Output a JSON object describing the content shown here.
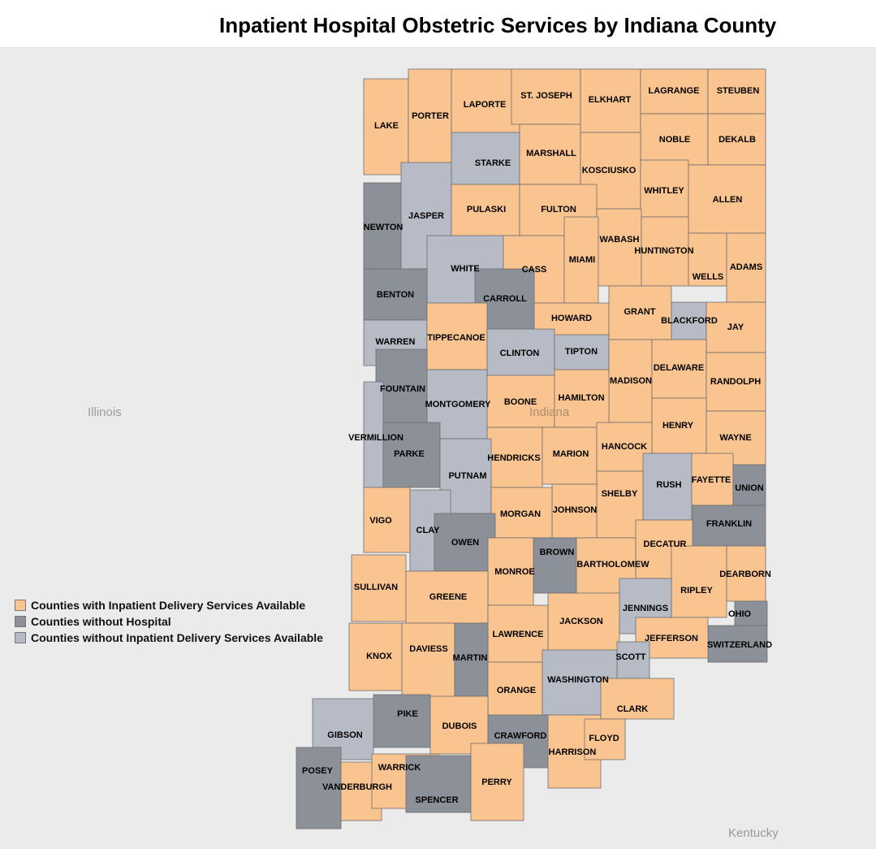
{
  "title": "Inpatient Hospital Obstetric Services by Indiana County",
  "regions": {
    "illinois": "Illinois",
    "indiana": "Indiana",
    "kentucky": "Kentucky"
  },
  "colors": {
    "available": "#f9c48f",
    "no_hospital": "#8c9099",
    "not_available": "#b6bbc5",
    "background": "#ebebeb"
  },
  "legend": [
    {
      "key": "available",
      "label": "Counties with Inpatient Delivery Services Available"
    },
    {
      "key": "no_hospital",
      "label": "Counties without Hospital"
    },
    {
      "key": "not_available",
      "label": "Counties without Inpatient Delivery Services Available"
    }
  ],
  "not_available": [
    "STARKE",
    "JASPER",
    "WHITE",
    "WARREN",
    "CLINTON",
    "TIPTON",
    "BLACKFORD",
    "MONTGOMERY",
    "VERMILLION",
    "PUTNAM",
    "RUSH",
    "CLAY",
    "JENNINGS",
    "SCOTT",
    "WASHINGTON",
    "GIBSON"
  ],
  "no_hospital": [
    "NEWTON",
    "BENTON",
    "CARROLL",
    "FOUNTAIN",
    "PARKE",
    "OWEN",
    "BROWN",
    "UNION",
    "FRANKLIN",
    "OHIO",
    "SWITZERLAND",
    "MARTIN",
    "PIKE",
    "CRAWFORD",
    "POSEY",
    "SPENCER"
  ],
  "counties": [
    "LAKE",
    "PORTER",
    "LAPORTE",
    "ST. JOSEPH",
    "ELKHART",
    "LAGRANGE",
    "STEUBEN",
    "NOBLE",
    "DEKALB",
    "STARKE",
    "MARSHALL",
    "KOSCIUSKO",
    "WHITLEY",
    "ALLEN",
    "NEWTON",
    "JASPER",
    "PULASKI",
    "FULTON",
    "WABASH",
    "HUNTINGTON",
    "WELLS",
    "ADAMS",
    "WHITE",
    "CASS",
    "MIAMI",
    "BENTON",
    "CARROLL",
    "HOWARD",
    "GRANT",
    "BLACKFORD",
    "JAY",
    "WARREN",
    "TIPPECANOE",
    "CLINTON",
    "TIPTON",
    "MADISON",
    "DELAWARE",
    "RANDOLPH",
    "FOUNTAIN",
    "MONTGOMERY",
    "BOONE",
    "HAMILTON",
    "HENRY",
    "WAYNE",
    "VERMILLION",
    "PARKE",
    "HENDRICKS",
    "MARION",
    "HANCOCK",
    "PUTNAM",
    "RUSH",
    "FAYETTE",
    "UNION",
    "SHELBY",
    "JOHNSON",
    "MORGAN",
    "VIGO",
    "CLAY",
    "OWEN",
    "FRANKLIN",
    "DECATUR",
    "BROWN",
    "BARTHOLOMEW",
    "MONROE",
    "SULLIVAN",
    "GREENE",
    "RIPLEY",
    "DEARBORN",
    "JENNINGS",
    "OHIO",
    "SWITZERLAND",
    "JACKSON",
    "LAWRENCE",
    "JEFFERSON",
    "SCOTT",
    "KNOX",
    "DAVIESS",
    "MARTIN",
    "ORANGE",
    "WASHINGTON",
    "CLARK",
    "PIKE",
    "DUBOIS",
    "GIBSON",
    "CRAWFORD",
    "HARRISON",
    "FLOYD",
    "POSEY",
    "VANDERBURGH",
    "WARRICK",
    "SPENCER",
    "PERRY"
  ]
}
